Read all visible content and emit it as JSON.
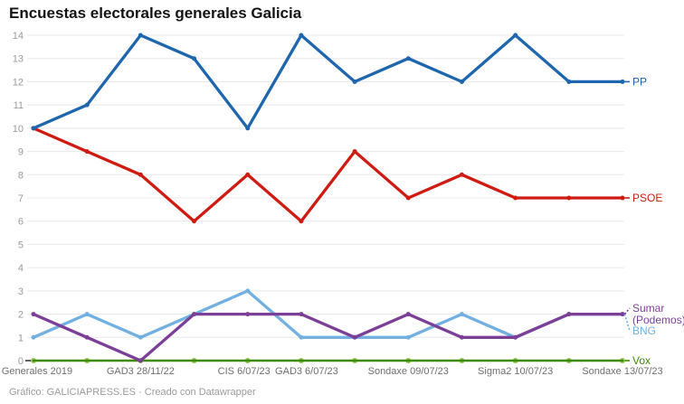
{
  "title": "Encuestas electorales generales Galicia",
  "footer": {
    "text": "Gráfico: GALICIAPRESS.ES · Creado con Datawrapper"
  },
  "chart_data": {
    "type": "line",
    "title": "Encuestas electorales generales Galicia",
    "xlabel": "",
    "ylabel": "",
    "ylim": [
      0,
      14
    ],
    "y_ticks": [
      0,
      1,
      2,
      3,
      4,
      5,
      6,
      7,
      8,
      9,
      10,
      11,
      12,
      13,
      14
    ],
    "grid": true,
    "legend_position": "line-end-labels",
    "x_labels": [
      "Generales 2019",
      "",
      "GAD3 28/11/22",
      "",
      "CIS 6/07/23",
      "GAD3 6/07/23",
      "",
      "Sondaxe 09/07/23",
      "",
      "Sigma2 10/07/23",
      "",
      "Sondaxe 13/07/23"
    ],
    "series": [
      {
        "name": "Vox",
        "color": "#3d8b00",
        "marker_color": "#90c853",
        "label_lines": [
          "Vox"
        ],
        "values": [
          0,
          0,
          0,
          0,
          0,
          0,
          0,
          0,
          0,
          0,
          0,
          0
        ]
      },
      {
        "name": "BNG",
        "color": "#72b0e2",
        "label_lines": [
          "BNG"
        ],
        "values": [
          1,
          2,
          1,
          2,
          3,
          1,
          1,
          1,
          2,
          1,
          2,
          2
        ]
      },
      {
        "name": "Sumar (Podemos)",
        "color": "#7c3f98",
        "label_lines": [
          "Sumar",
          "(Podemos)"
        ],
        "values": [
          2,
          1,
          0,
          2,
          2,
          2,
          1,
          2,
          1,
          1,
          2,
          2
        ]
      },
      {
        "name": "PSOE",
        "color": "#cf1c13",
        "label_lines": [
          "PSOE"
        ],
        "values": [
          10,
          9,
          8,
          6,
          8,
          6,
          9,
          7,
          8,
          7,
          7,
          7
        ]
      },
      {
        "name": "PP",
        "color": "#1e66ad",
        "label_lines": [
          "PP"
        ],
        "values": [
          10,
          11,
          14,
          13,
          10,
          14,
          12,
          13,
          12,
          14,
          12,
          12
        ]
      }
    ]
  }
}
